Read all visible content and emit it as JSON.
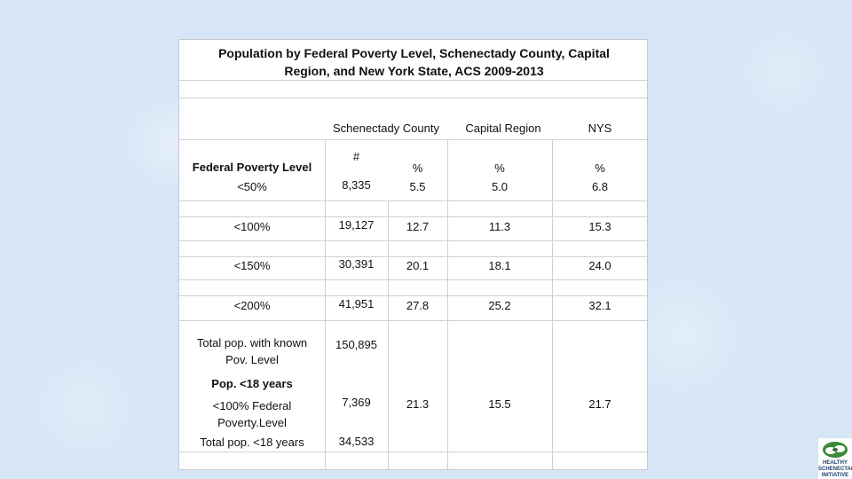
{
  "title_line1": "Population by Federal Poverty Level, Schenectady County, Capital",
  "title_line2": "Region, and New York State,  ACS 2009-2013",
  "headers": {
    "schenectady": "Schenectady County",
    "capital": "Capital Region",
    "nys": "NYS",
    "count_symbol": "#",
    "pct_symbol": "%",
    "fpl_label": "Federal Poverty Level"
  },
  "rows": [
    {
      "label": "<50%",
      "count": "8,335",
      "sc_pct": "5.5",
      "cr_pct": "5.0",
      "nys_pct": "6.8"
    },
    {
      "label": "<100%",
      "count": "19,127",
      "sc_pct": "12.7",
      "cr_pct": "11.3",
      "nys_pct": "15.3"
    },
    {
      "label": "<150%",
      "count": "30,391",
      "sc_pct": "20.1",
      "cr_pct": "18.1",
      "nys_pct": "24.0"
    },
    {
      "label": "<200%",
      "count": "41,951",
      "sc_pct": "27.8",
      "cr_pct": "25.2",
      "nys_pct": "32.1"
    }
  ],
  "total_known": {
    "label_line1": "Total pop. with known",
    "label_line2": "Pov. Level",
    "count": "150,895"
  },
  "under18_heading": "Pop. <18 years",
  "under18_row": {
    "label_line1": "<100% Federal",
    "label_line2": "Poverty.Level",
    "count": "7,369",
    "sc_pct": "21.3",
    "cr_pct": "15.5",
    "nys_pct": "21.7"
  },
  "total_under18": {
    "label": "Total pop. <18 years",
    "count": "34,533"
  },
  "logo": {
    "line1": "HEALTHY",
    "line2": "SCHENECTADY",
    "line3": "INITIATIVE"
  }
}
